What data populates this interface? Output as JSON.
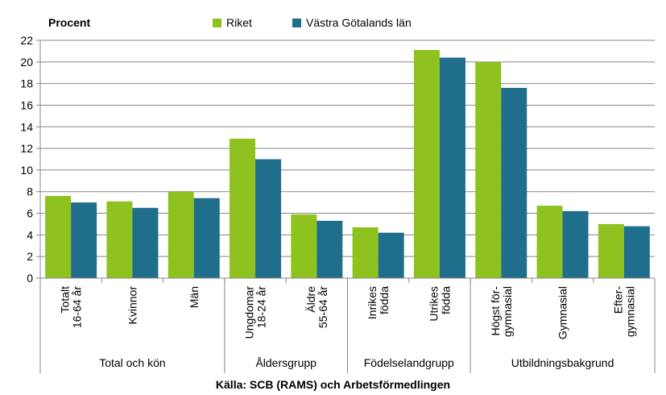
{
  "chart_data": {
    "type": "bar",
    "ylabel": "Procent",
    "ylim": [
      0,
      22
    ],
    "yticks": [
      0,
      2,
      4,
      6,
      8,
      10,
      12,
      14,
      16,
      18,
      20,
      22
    ],
    "grid": true,
    "legend_position": "top",
    "categories": [
      [
        "Totalt",
        "16-64 år"
      ],
      [
        "Kvinnor"
      ],
      [
        "Män"
      ],
      [
        "Ungdomar",
        "18-24 år"
      ],
      [
        "Äldre",
        "55-64 år"
      ],
      [
        "Inrikes",
        "födda"
      ],
      [
        "Utrikes",
        "födda"
      ],
      [
        "Högst för-",
        "gymnasial"
      ],
      [
        "Gymnasial"
      ],
      [
        "Efter-",
        "gymnasial"
      ]
    ],
    "groups": [
      {
        "label": "Total och kön",
        "count": 3
      },
      {
        "label": "Åldersgrupp",
        "count": 2
      },
      {
        "label": "Födelselandgrupp",
        "count": 2
      },
      {
        "label": "Utbildningsbakgrund",
        "count": 3
      }
    ],
    "series": [
      {
        "name": "Riket",
        "color": "#8dc21f",
        "values": [
          7.6,
          7.1,
          8.0,
          12.9,
          5.9,
          4.7,
          21.1,
          20.0,
          6.7,
          5.0
        ]
      },
      {
        "name": "Västra Götalands län",
        "color": "#1f6e8c",
        "values": [
          7.0,
          6.5,
          7.4,
          11.0,
          5.3,
          4.2,
          20.4,
          17.6,
          6.2,
          4.8
        ]
      }
    ],
    "source": "Källa:  SCB (RAMS) och Arbetsförmedlingen"
  }
}
